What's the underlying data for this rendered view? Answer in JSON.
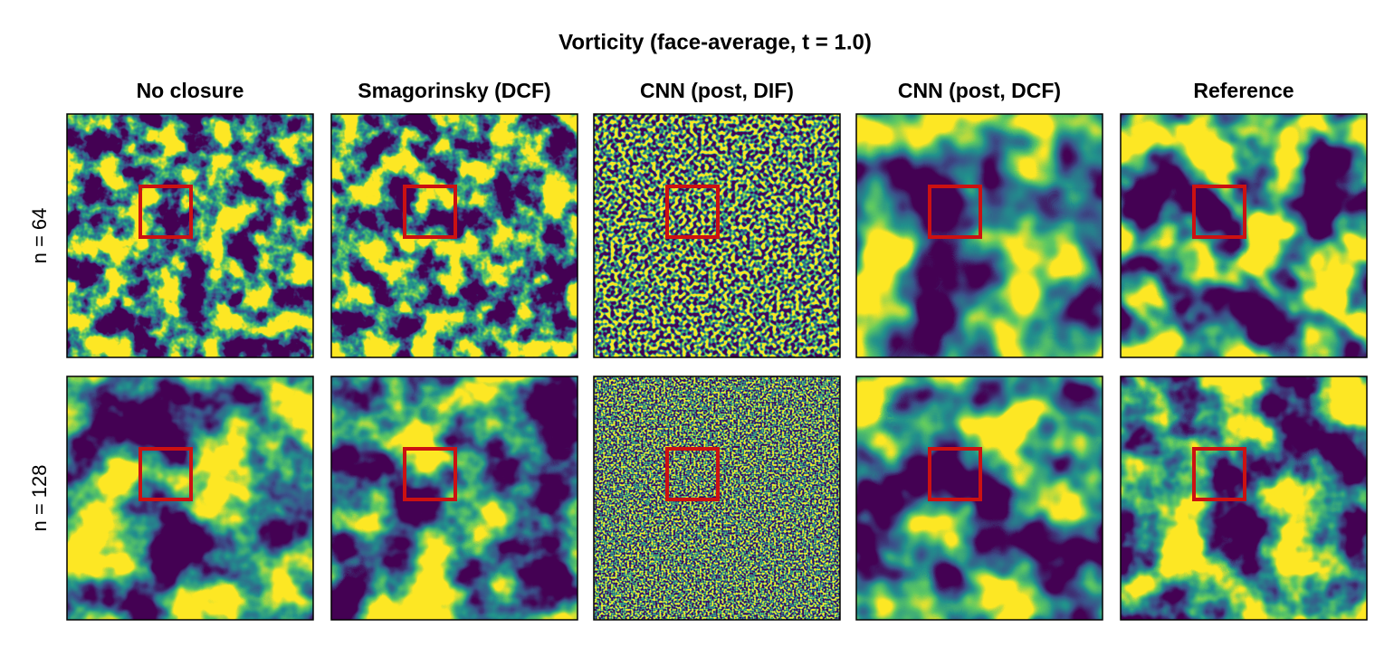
{
  "title": "Vorticity (face-average, t = 1.0)",
  "columns": [
    "No closure",
    "Smagorinsky (DCF)",
    "CNN (post, DIF)",
    "CNN (post, DCF)",
    "Reference"
  ],
  "rows": [
    "n = 64",
    "n = 128"
  ]
}
